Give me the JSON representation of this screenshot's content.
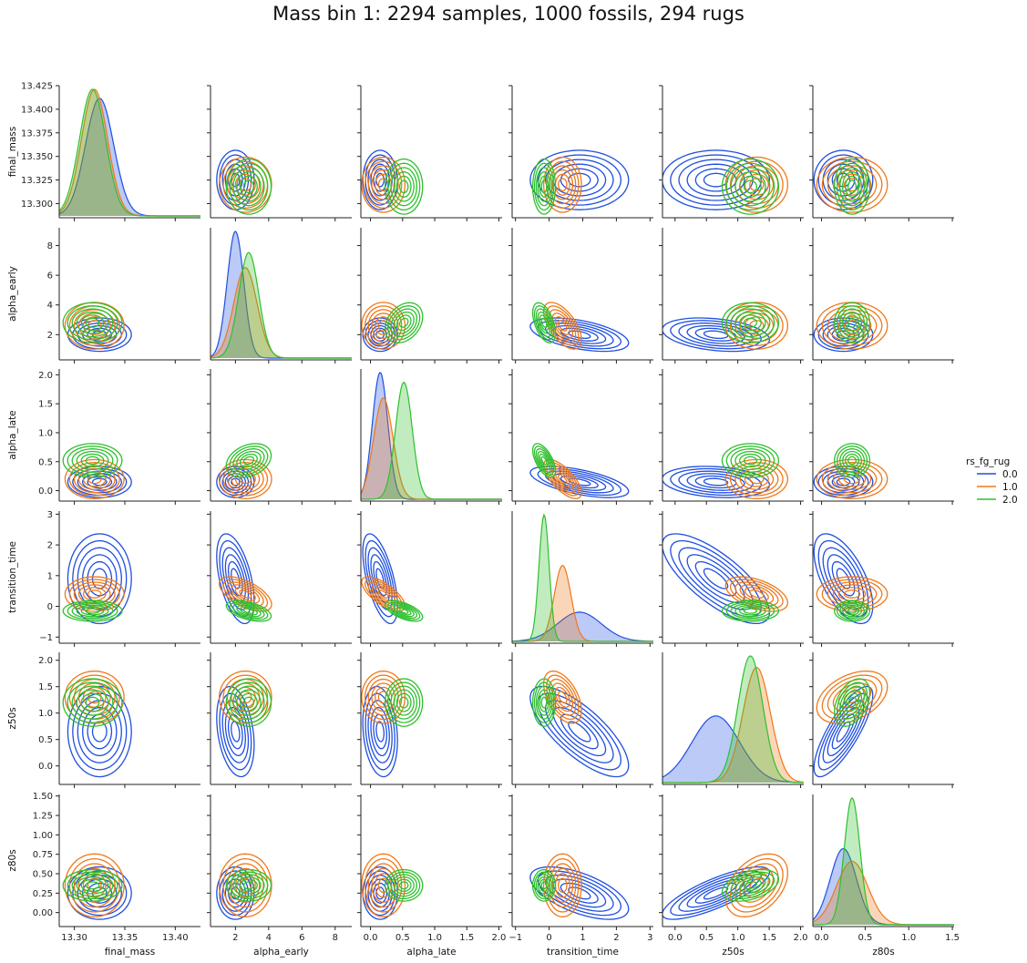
{
  "figure": {
    "title": "Mass bin 1: 2294 samples, 1000 fossils, 294 rugs"
  },
  "chart_data": {
    "type": "pairplot",
    "kind": "kde",
    "variables": [
      "final_mass",
      "alpha_early",
      "alpha_late",
      "transition_time",
      "z50s",
      "z80s"
    ],
    "hue": "rs_fg_rug",
    "hue_levels": [
      "0.0",
      "1.0",
      "2.0"
    ],
    "colors": {
      "0.0": "#1f4fe0",
      "1.0": "#f07818",
      "2.0": "#2ec02e"
    },
    "diag_alpha_fill": 0.3,
    "axes": {
      "final_mass": {
        "lim": [
          13.285,
          13.425
        ],
        "ticks": [
          13.3,
          13.35,
          13.4
        ],
        "labels": [
          "13.30",
          "13.35",
          "13.40"
        ],
        "ylim": [
          13.285,
          13.425
        ],
        "yticks": [
          13.3,
          13.325,
          13.35,
          13.375,
          13.4,
          13.425
        ],
        "ylabels": [
          "13.300",
          "13.325",
          "13.350",
          "13.375",
          "13.400",
          "13.425"
        ]
      },
      "alpha_early": {
        "lim": [
          0.5,
          9.0
        ],
        "ticks": [
          2,
          4,
          6,
          8
        ],
        "labels": [
          "2",
          "4",
          "6",
          "8"
        ],
        "ylim": [
          0.3,
          9.2
        ],
        "yticks": [
          2,
          4,
          6,
          8
        ],
        "ylabels": [
          "2",
          "4",
          "6",
          "8"
        ]
      },
      "alpha_late": {
        "lim": [
          -0.15,
          2.05
        ],
        "ticks": [
          0.0,
          0.5,
          1.0,
          1.5,
          2.0
        ],
        "labels": [
          "0.0",
          "0.5",
          "1.0",
          "1.5",
          "2.0"
        ],
        "ylim": [
          -0.18,
          2.1
        ],
        "yticks": [
          0.0,
          0.5,
          1.0,
          1.5,
          2.0
        ],
        "ylabels": [
          "0.0",
          "0.5",
          "1.0",
          "1.5",
          "2.0"
        ]
      },
      "transition_time": {
        "lim": [
          -1.1,
          3.1
        ],
        "ticks": [
          -1,
          0,
          1,
          2,
          3
        ],
        "labels": [
          "−1",
          "0",
          "1",
          "2",
          "3"
        ],
        "ylim": [
          -1.2,
          3.1
        ],
        "yticks": [
          -1,
          0,
          1,
          2,
          3
        ],
        "ylabels": [
          "−1",
          "0",
          "1",
          "2",
          "3"
        ]
      },
      "z50s": {
        "lim": [
          -0.2,
          2.05
        ],
        "ticks": [
          0.0,
          0.5,
          1.0,
          1.5,
          2.0
        ],
        "labels": [
          "0.0",
          "0.5",
          "1.0",
          "1.5",
          "2.0"
        ],
        "ylim": [
          -0.35,
          2.15
        ],
        "yticks": [
          0.0,
          0.5,
          1.0,
          1.5,
          2.0
        ],
        "ylabels": [
          "0.0",
          "0.5",
          "1.0",
          "1.5",
          "2.0"
        ]
      },
      "z80s": {
        "lim": [
          -0.1,
          1.52
        ],
        "ticks": [
          0.0,
          0.5,
          1.0,
          1.5
        ],
        "labels": [
          "0.0",
          "0.5",
          "1.0",
          "1.5"
        ],
        "ylim": [
          -0.18,
          1.52
        ],
        "yticks": [
          0.0,
          0.25,
          0.5,
          0.75,
          1.0,
          1.25,
          1.5
        ],
        "ylabels": [
          "0.00",
          "0.25",
          "0.50",
          "0.75",
          "1.00",
          "1.25",
          "1.50"
        ]
      }
    },
    "groups": {
      "0.0": {
        "mean": {
          "final_mass": 13.325,
          "alpha_early": 2.0,
          "alpha_late": 0.15,
          "transition_time": 0.9,
          "z50s": 0.65,
          "z80s": 0.25
        },
        "sd": {
          "final_mass": 0.014,
          "alpha_early": 0.5,
          "alpha_late": 0.12,
          "transition_time": 0.65,
          "z50s": 0.38,
          "z80s": 0.15
        },
        "corr": {
          "alpha_early|transition_time": -0.5,
          "alpha_late|transition_time": -0.6,
          "transition_time|z50s": -0.75,
          "transition_time|z80s": -0.6,
          "z50s|z80s": 0.8,
          "alpha_early|z50s": -0.3,
          "alpha_late|z50s": -0.2
        }
      },
      "1.0": {
        "mean": {
          "final_mass": 13.32,
          "alpha_early": 2.6,
          "alpha_late": 0.2,
          "transition_time": 0.4,
          "z50s": 1.3,
          "z80s": 0.35
        },
        "sd": {
          "final_mass": 0.013,
          "alpha_early": 0.7,
          "alpha_late": 0.15,
          "transition_time": 0.25,
          "z50s": 0.22,
          "z80s": 0.18
        },
        "corr": {
          "alpha_early|transition_time": -0.6,
          "alpha_late|transition_time": -0.7,
          "transition_time|z50s": -0.5,
          "z50s|z80s": 0.4
        }
      },
      "2.0": {
        "mean": {
          "final_mass": 13.318,
          "alpha_early": 2.8,
          "alpha_late": 0.52,
          "transition_time": -0.15,
          "z50s": 1.2,
          "z80s": 0.35
        },
        "sd": {
          "final_mass": 0.013,
          "alpha_early": 0.6,
          "alpha_late": 0.13,
          "transition_time": 0.15,
          "z50s": 0.2,
          "z80s": 0.09
        },
        "corr": {
          "alpha_early|alpha_late": 0.3,
          "alpha_early|transition_time": -0.5,
          "alpha_late|transition_time": -0.6,
          "z50s|z80s": 0.4
        }
      }
    },
    "legend": {
      "title": "rs_fg_rug",
      "entries": [
        "0.0",
        "1.0",
        "2.0"
      ],
      "placement": "right"
    }
  }
}
